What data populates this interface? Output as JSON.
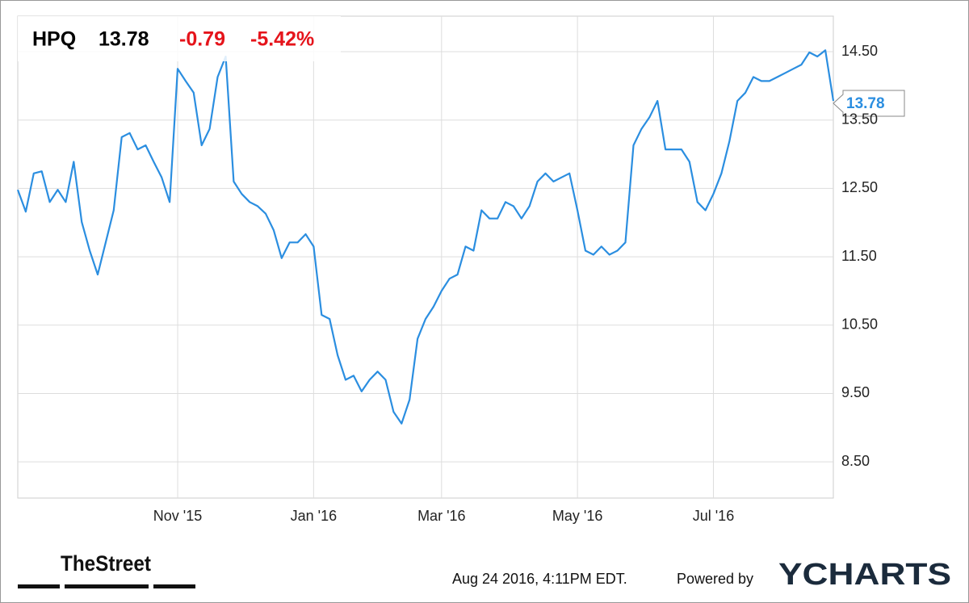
{
  "chart_data": {
    "type": "line",
    "ticker": "HPQ",
    "change": "-0.79",
    "change_percent": "-5.42%",
    "categories": [
      null,
      null,
      null,
      null,
      null,
      null,
      null,
      null,
      null,
      null,
      null,
      null,
      null,
      null,
      null,
      null,
      null,
      null,
      null,
      null,
      "Nov '15",
      null,
      null,
      null,
      null,
      null,
      null,
      null,
      null,
      null,
      null,
      null,
      null,
      null,
      null,
      null,
      null,
      "Jan '16",
      null,
      null,
      null,
      null,
      null,
      null,
      null,
      null,
      null,
      null,
      null,
      null,
      null,
      null,
      null,
      "Mar '16",
      null,
      null,
      null,
      null,
      null,
      null,
      null,
      null,
      null,
      null,
      null,
      null,
      null,
      null,
      null,
      null,
      "May '16",
      null,
      null,
      null,
      null,
      null,
      null,
      null,
      null,
      null,
      null,
      null,
      null,
      null,
      null,
      null,
      null,
      "Jul '16",
      null,
      null,
      null,
      null,
      null,
      null,
      null,
      null,
      null,
      null,
      null,
      null,
      null,
      null,
      null
    ],
    "values": [
      12.48,
      12.16,
      12.72,
      12.75,
      12.3,
      12.48,
      12.3,
      12.89,
      12.01,
      11.59,
      11.24,
      11.71,
      12.18,
      13.25,
      13.31,
      13.07,
      13.13,
      12.89,
      12.66,
      12.3,
      14.25,
      14.07,
      13.9,
      13.13,
      13.37,
      14.13,
      14.43,
      12.6,
      12.42,
      12.3,
      12.24,
      12.13,
      11.89,
      11.48,
      11.71,
      11.71,
      11.83,
      11.65,
      10.65,
      10.59,
      10.06,
      9.7,
      9.76,
      9.53,
      9.7,
      9.82,
      9.7,
      9.23,
      9.06,
      9.41,
      10.3,
      10.59,
      10.77,
      11.0,
      11.18,
      11.24,
      11.65,
      11.59,
      12.18,
      12.06,
      12.06,
      12.3,
      12.24,
      12.06,
      12.24,
      12.6,
      12.72,
      12.6,
      12.66,
      12.72,
      12.18,
      11.59,
      11.53,
      11.65,
      11.53,
      11.59,
      11.71,
      13.13,
      13.37,
      13.54,
      13.78,
      13.07,
      13.07,
      13.07,
      12.89,
      12.3,
      12.18,
      12.42,
      12.72,
      13.19,
      13.78,
      13.9,
      14.13,
      14.07,
      14.07,
      14.13,
      14.19,
      14.25,
      14.31,
      14.49,
      14.43,
      14.52,
      13.78
    ],
    "color": "#2b8ee0",
    "ylim": [
      7.97,
      15.02
    ],
    "yticks": [
      {
        "value": 8.5,
        "label": "8.50"
      },
      {
        "value": 9.5,
        "label": "9.50"
      },
      {
        "value": 10.5,
        "label": "10.50"
      },
      {
        "value": 11.5,
        "label": "11.50"
      },
      {
        "value": 12.5,
        "label": "12.50"
      },
      {
        "value": 13.5,
        "label": "13.50"
      },
      {
        "value": 14.5,
        "label": "14.50"
      }
    ],
    "grid": true
  },
  "footer": {
    "brand": "TheStreet",
    "timestamp": "Aug 24 2016, 4:11PM EDT.",
    "powered": "Powered by",
    "logo": "YCHARTS"
  }
}
